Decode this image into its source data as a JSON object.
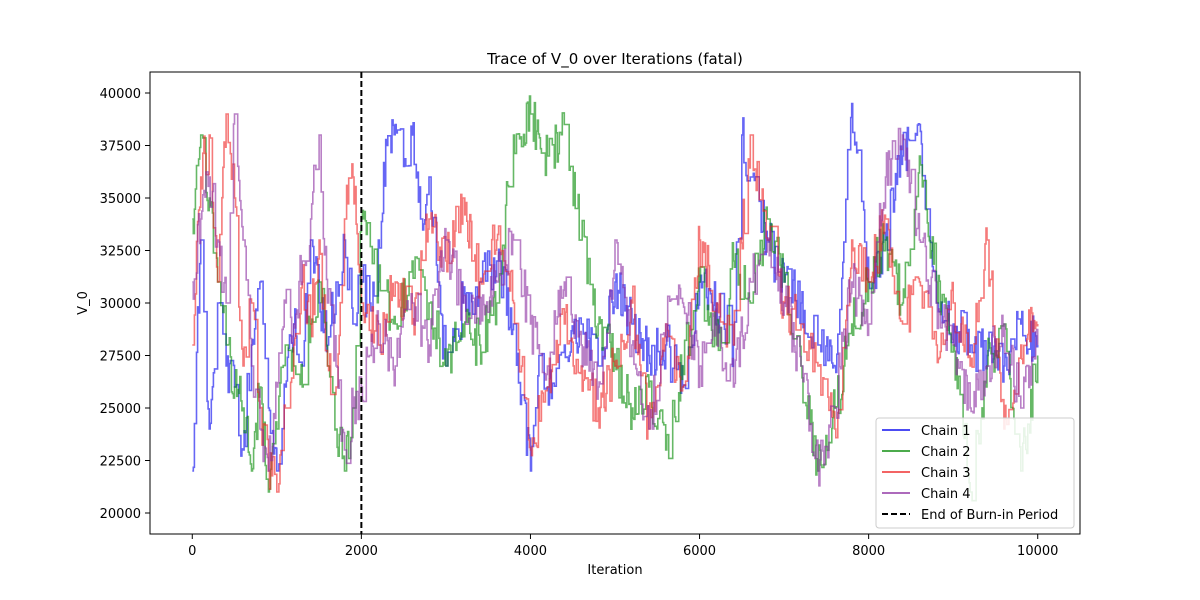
{
  "chart_data": {
    "type": "line",
    "title": "Trace of V_0 over Iterations (fatal)",
    "xlabel": "Iteration",
    "ylabel": "V_0",
    "xlim": [
      -500,
      10500
    ],
    "ylim": [
      19000,
      41000
    ],
    "xticks": [
      0,
      2000,
      4000,
      6000,
      8000,
      10000
    ],
    "yticks": [
      20000,
      22500,
      25000,
      27500,
      30000,
      32500,
      35000,
      37500,
      40000
    ],
    "legend_position": "lower-right",
    "burn_in": {
      "x": 2000,
      "label": "End of Burn-in Period",
      "color": "#000000"
    },
    "series": [
      {
        "name": "Chain 1",
        "color": "#0000ee",
        "x": [
          0,
          100,
          200,
          300,
          400,
          500,
          600,
          700,
          800,
          900,
          1000,
          1100,
          1200,
          1300,
          1400,
          1500,
          1600,
          1700,
          1800,
          1900,
          2000,
          2100,
          2200,
          2300,
          2400,
          2500,
          2600,
          2700,
          2800,
          2900,
          3000,
          3200,
          3400,
          3600,
          3800,
          4000,
          4100,
          4200,
          4400,
          4600,
          4800,
          5000,
          5200,
          5400,
          5600,
          5800,
          6000,
          6200,
          6400,
          6500,
          6600,
          6800,
          7000,
          7200,
          7400,
          7600,
          7800,
          8000,
          8200,
          8400,
          8600,
          8800,
          9000,
          9200,
          9400,
          9600,
          9800,
          10000
        ],
        "y": [
          22000,
          33000,
          24000,
          30000,
          27000,
          26000,
          23000,
          28000,
          31000,
          25000,
          22000,
          26000,
          29000,
          27000,
          33000,
          30000,
          28000,
          31000,
          33000,
          29000,
          31000,
          30000,
          33000,
          37500,
          38500,
          36500,
          38000,
          34000,
          36000,
          31000,
          27000,
          30000,
          31000,
          32000,
          29000,
          22000,
          27500,
          26000,
          28000,
          29000,
          27000,
          31000,
          29000,
          27500,
          28000,
          26000,
          31000,
          30000,
          28000,
          38000,
          36000,
          33000,
          31000,
          30000,
          28000,
          27000,
          39500,
          31000,
          33000,
          37000,
          38500,
          30000,
          29000,
          28000,
          27500,
          27000,
          29000,
          28000
        ]
      },
      {
        "name": "Chain 2",
        "color": "#008800",
        "x": [
          0,
          100,
          200,
          300,
          400,
          500,
          600,
          700,
          800,
          900,
          1000,
          1100,
          1200,
          1300,
          1400,
          1500,
          1600,
          1700,
          1800,
          1900,
          2000,
          2200,
          2400,
          2600,
          2800,
          3000,
          3200,
          3400,
          3600,
          3800,
          4000,
          4200,
          4400,
          4600,
          4800,
          5000,
          5200,
          5400,
          5600,
          5800,
          6000,
          6200,
          6400,
          6600,
          6800,
          7000,
          7200,
          7400,
          7600,
          7800,
          8000,
          8200,
          8400,
          8600,
          8800,
          9000,
          9200,
          9400,
          9600,
          9800,
          10000
        ],
        "y": [
          34000,
          38000,
          35000,
          31000,
          28000,
          26000,
          25000,
          22000,
          26000,
          21000,
          24000,
          28000,
          27000,
          26000,
          29000,
          31000,
          27000,
          24000,
          22000,
          25000,
          34000,
          31000,
          29000,
          32000,
          30000,
          27000,
          29000,
          28000,
          30000,
          38000,
          39000,
          37000,
          38500,
          33000,
          29000,
          27000,
          25000,
          26000,
          23000,
          27000,
          31000,
          28000,
          32000,
          30000,
          34000,
          31000,
          27000,
          22000,
          25000,
          29000,
          31000,
          33000,
          30000,
          37000,
          31000,
          28000,
          21000,
          27000,
          29000,
          22000,
          27500
        ]
      },
      {
        "name": "Chain 3",
        "color": "#ee2222",
        "x": [
          0,
          100,
          200,
          300,
          400,
          500,
          600,
          700,
          800,
          900,
          1000,
          1100,
          1200,
          1300,
          1400,
          1500,
          1600,
          1700,
          1800,
          1900,
          2000,
          2200,
          2400,
          2600,
          2800,
          3000,
          3200,
          3400,
          3600,
          3800,
          4000,
          4200,
          4400,
          4600,
          4800,
          5000,
          5200,
          5400,
          5600,
          5800,
          6000,
          6200,
          6400,
          6600,
          6800,
          7000,
          7200,
          7400,
          7600,
          7800,
          8000,
          8200,
          8400,
          8600,
          8800,
          9000,
          9200,
          9400,
          9600,
          9800,
          10000
        ],
        "y": [
          28000,
          36000,
          38000,
          31000,
          39000,
          35000,
          27000,
          30000,
          25000,
          22000,
          21000,
          25000,
          28000,
          31000,
          29000,
          33000,
          27000,
          26000,
          34000,
          36000,
          30000,
          28000,
          31000,
          29000,
          34000,
          32000,
          35000,
          31000,
          33000,
          30000,
          23000,
          26000,
          29000,
          27000,
          25000,
          27000,
          30000,
          24000,
          29000,
          26000,
          33000,
          30000,
          28000,
          38000,
          33000,
          30000,
          29000,
          27000,
          24000,
          33000,
          31000,
          34000,
          29000,
          31000,
          28000,
          30000,
          27000,
          33000,
          24000,
          28000,
          29000
        ]
      },
      {
        "name": "Chain 4",
        "color": "#8a2ba0",
        "x": [
          0,
          100,
          200,
          300,
          400,
          500,
          600,
          700,
          800,
          900,
          1000,
          1100,
          1200,
          1300,
          1400,
          1500,
          1600,
          1700,
          1800,
          1900,
          2000,
          2200,
          2400,
          2600,
          2800,
          3000,
          3200,
          3400,
          3600,
          3800,
          4000,
          4200,
          4400,
          4600,
          4800,
          5000,
          5200,
          5400,
          5600,
          5800,
          6000,
          6200,
          6400,
          6600,
          6800,
          7000,
          7200,
          7400,
          7600,
          7800,
          8000,
          8200,
          8400,
          8600,
          8800,
          9000,
          9200,
          9400,
          9600,
          9800,
          10000
        ],
        "y": [
          31000,
          34000,
          36000,
          33000,
          30000,
          39000,
          33000,
          27000,
          24000,
          22000,
          26000,
          30000,
          29000,
          32000,
          34000,
          38000,
          30000,
          27000,
          23000,
          25000,
          26000,
          29000,
          27000,
          30000,
          28000,
          33000,
          30000,
          29000,
          31000,
          33000,
          29000,
          27000,
          31000,
          28000,
          26000,
          33000,
          28000,
          24000,
          29000,
          30000,
          27000,
          29000,
          26000,
          31000,
          33000,
          30000,
          27000,
          22000,
          25000,
          31000,
          29000,
          36000,
          38000,
          33000,
          30000,
          28000,
          25000,
          27000,
          29000,
          25000,
          28000
        ]
      }
    ]
  }
}
